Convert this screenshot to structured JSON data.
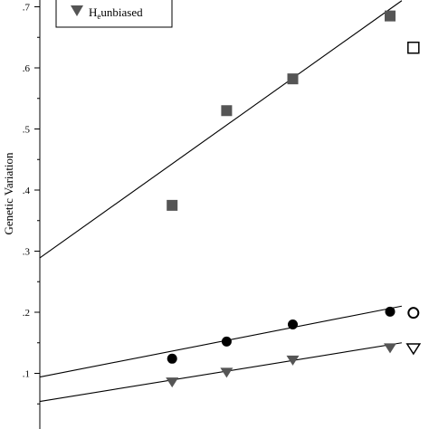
{
  "chart_data": {
    "type": "scatter",
    "title": "",
    "xlabel": "",
    "ylabel": "Genetic Variation",
    "ylim": [
      0.0,
      0.7
    ],
    "xlim": [
      0.0,
      1.0
    ],
    "y_ticks": [
      {
        "value": 0.1,
        "label": ".1"
      },
      {
        "value": 0.2,
        "label": ".2"
      },
      {
        "value": 0.3,
        "label": ".3"
      },
      {
        "value": 0.4,
        "label": ".4"
      },
      {
        "value": 0.5,
        "label": ".5"
      },
      {
        "value": 0.6,
        "label": ".6"
      },
      {
        "value": 0.7,
        "label": ".7"
      }
    ],
    "grid": false,
    "legend": {
      "placement": "top-left",
      "entries": [
        {
          "marker": "triangle-down-filled",
          "main": "H",
          "sub": "e",
          "rest": "unbiased"
        }
      ]
    },
    "series": [
      {
        "marker": "square",
        "color": "#555555",
        "points": [
          {
            "x": 0.34,
            "y": 0.375
          },
          {
            "x": 0.48,
            "y": 0.53
          },
          {
            "x": 0.65,
            "y": 0.582
          },
          {
            "x": 0.9,
            "y": 0.685
          }
        ],
        "open_point": {
          "x": 0.96,
          "y": 0.633
        },
        "trend": {
          "x0": 0.0,
          "y0": 0.289,
          "x1": 0.93,
          "y1": 0.71
        }
      },
      {
        "marker": "circle",
        "color": "#000000",
        "points": [
          {
            "x": 0.34,
            "y": 0.124
          },
          {
            "x": 0.48,
            "y": 0.152
          },
          {
            "x": 0.65,
            "y": 0.18
          },
          {
            "x": 0.9,
            "y": 0.201
          }
        ],
        "open_point": {
          "x": 0.96,
          "y": 0.199
        },
        "trend": {
          "x0": 0.0,
          "y0": 0.094,
          "x1": 0.93,
          "y1": 0.21
        }
      },
      {
        "marker": "triangle-down",
        "color": "#555555",
        "points": [
          {
            "x": 0.34,
            "y": 0.085
          },
          {
            "x": 0.48,
            "y": 0.101
          },
          {
            "x": 0.65,
            "y": 0.121
          },
          {
            "x": 0.9,
            "y": 0.141
          }
        ],
        "open_point": {
          "x": 0.96,
          "y": 0.14
        },
        "trend": {
          "x0": 0.0,
          "y0": 0.054,
          "x1": 0.93,
          "y1": 0.15
        }
      }
    ]
  }
}
